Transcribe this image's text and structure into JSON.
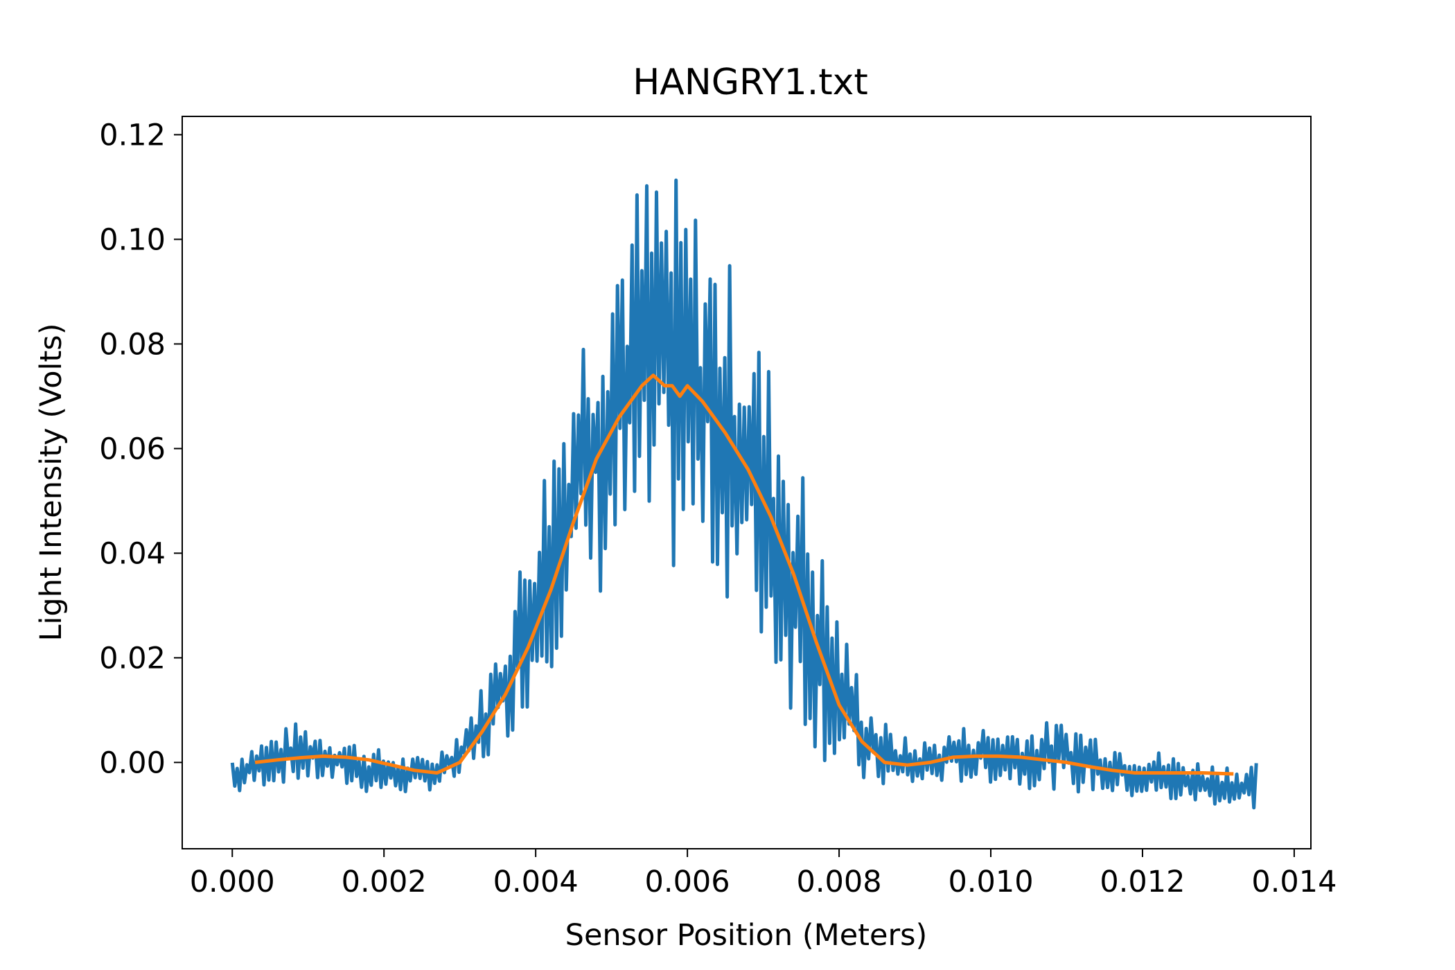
{
  "chart_data": {
    "type": "line",
    "title": "HANGRY1.txt",
    "xlabel": "Sensor Position (Meters)",
    "ylabel": "Light Intensity (Volts)",
    "xlim": [
      -0.00066,
      0.01422
    ],
    "ylim": [
      -0.0165,
      0.1235
    ],
    "xticks": [
      0.0,
      0.002,
      0.004,
      0.006,
      0.008,
      0.01,
      0.012,
      0.014
    ],
    "xtick_labels": [
      "0.000",
      "0.002",
      "0.004",
      "0.006",
      "0.008",
      "0.010",
      "0.012",
      "0.014"
    ],
    "yticks": [
      0.0,
      0.02,
      0.04,
      0.06,
      0.08,
      0.1,
      0.12
    ],
    "ytick_labels": [
      "0.00",
      "0.02",
      "0.04",
      "0.06",
      "0.08",
      "0.10",
      "0.12"
    ],
    "grid": false,
    "series": [
      {
        "color": "#1f77b4",
        "description": "raw sensor reading, oscillating between lower and upper envelopes",
        "x": [
          0.0,
          0.0003,
          0.0006,
          0.0009,
          0.0012,
          0.0015,
          0.0018,
          0.0021,
          0.0024,
          0.0027,
          0.003,
          0.0033,
          0.0036,
          0.0039,
          0.0042,
          0.0045,
          0.0048,
          0.0051,
          0.0054,
          0.0056,
          0.0058,
          0.006,
          0.0063,
          0.0066,
          0.0069,
          0.0072,
          0.0075,
          0.0078,
          0.0081,
          0.0084,
          0.0087,
          0.009,
          0.0093,
          0.0096,
          0.0099,
          0.0102,
          0.0105,
          0.0108,
          0.0111,
          0.0114,
          0.0117,
          0.012,
          0.0123,
          0.0126,
          0.0129,
          0.0132,
          0.0135
        ],
        "y_upper": [
          0.002,
          0.004,
          0.006,
          0.008,
          0.006,
          0.005,
          0.003,
          0.002,
          0.001,
          0.002,
          0.007,
          0.015,
          0.027,
          0.045,
          0.063,
          0.08,
          0.095,
          0.107,
          0.113,
          0.117,
          0.113,
          0.11,
          0.103,
          0.095,
          0.085,
          0.072,
          0.058,
          0.04,
          0.024,
          0.012,
          0.006,
          0.004,
          0.005,
          0.007,
          0.007,
          0.007,
          0.007,
          0.008,
          0.008,
          0.006,
          0.004,
          0.003,
          0.002,
          0.001,
          0.0,
          0.0,
          0.0
        ],
        "y_lower": [
          -0.007,
          -0.005,
          -0.004,
          -0.004,
          -0.004,
          -0.005,
          -0.006,
          -0.006,
          -0.006,
          -0.005,
          -0.004,
          -0.001,
          0.004,
          0.01,
          0.018,
          0.026,
          0.03,
          0.034,
          0.035,
          0.035,
          0.035,
          0.035,
          0.034,
          0.03,
          0.022,
          0.014,
          0.006,
          0.0,
          -0.004,
          -0.005,
          -0.005,
          -0.005,
          -0.004,
          -0.004,
          -0.004,
          -0.004,
          -0.005,
          -0.005,
          -0.006,
          -0.006,
          -0.007,
          -0.007,
          -0.008,
          -0.008,
          -0.008,
          -0.009,
          -0.009
        ]
      },
      {
        "color": "#ff7f0e",
        "description": "smoothed signal",
        "x": [
          0.0003,
          0.0006,
          0.0009,
          0.0012,
          0.0015,
          0.0018,
          0.0021,
          0.0024,
          0.0027,
          0.003,
          0.0033,
          0.0036,
          0.0039,
          0.0042,
          0.0045,
          0.0048,
          0.0051,
          0.0054,
          0.00555,
          0.0057,
          0.0058,
          0.0059,
          0.006,
          0.0062,
          0.0065,
          0.0068,
          0.0071,
          0.0074,
          0.0077,
          0.008,
          0.0083,
          0.0086,
          0.0089,
          0.0092,
          0.0095,
          0.0098,
          0.0101,
          0.0104,
          0.0107,
          0.011,
          0.0113,
          0.0116,
          0.0119,
          0.0122,
          0.0125,
          0.0128,
          0.0132
        ],
        "y": [
          0.0,
          0.0005,
          0.0009,
          0.0012,
          0.001,
          0.0005,
          -0.0005,
          -0.0015,
          -0.002,
          0.0,
          0.006,
          0.013,
          0.022,
          0.033,
          0.046,
          0.058,
          0.066,
          0.072,
          0.074,
          0.072,
          0.072,
          0.07,
          0.072,
          0.069,
          0.063,
          0.056,
          0.047,
          0.036,
          0.023,
          0.011,
          0.004,
          0.0,
          -0.0005,
          0.0,
          0.001,
          0.0012,
          0.0012,
          0.001,
          0.0005,
          0.0,
          -0.0008,
          -0.0015,
          -0.002,
          -0.002,
          -0.002,
          -0.002,
          -0.0022
        ]
      }
    ]
  }
}
